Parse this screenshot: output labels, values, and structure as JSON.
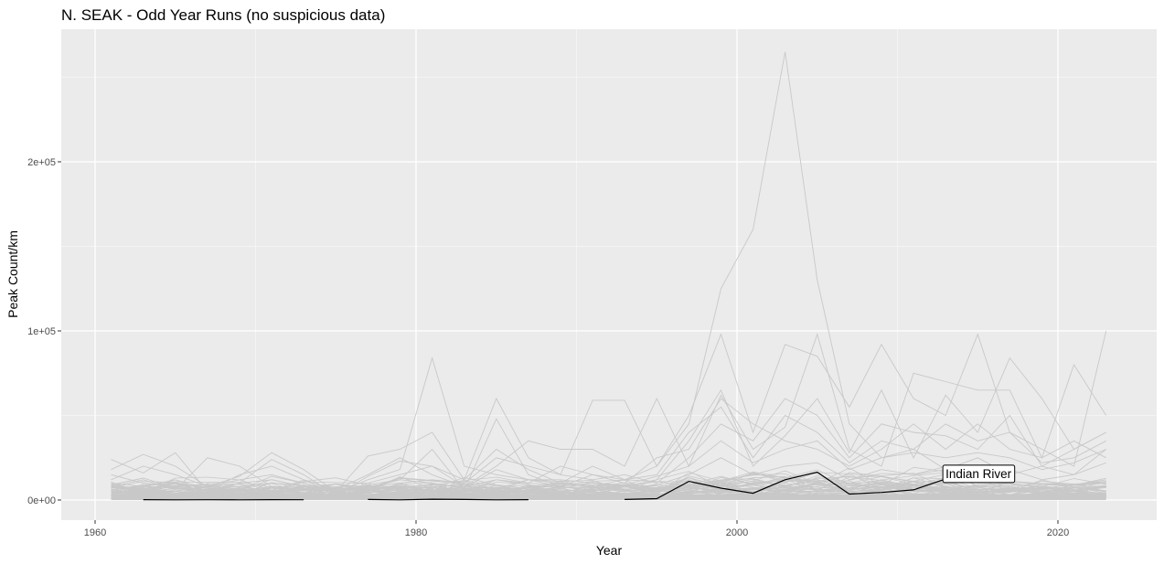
{
  "chart_data": {
    "type": "line",
    "title": "N. SEAK - Odd Year Runs (no suspicious data)",
    "xlabel": "Year",
    "ylabel": "Peak Count/km",
    "xlim": [
      1958.9,
      1965.9
    ],
    "ylim": [
      -13400,
      262000
    ],
    "x_ticks": [
      1960,
      1980,
      2000,
      2020
    ],
    "x_tick_labels": [
      "1960",
      "1980",
      "2000",
      "2020"
    ],
    "y_ticks": [
      0,
      100000,
      200000
    ],
    "y_tick_labels": [
      "0e+00",
      "1e+05",
      "2e+05"
    ],
    "grid": true,
    "legend": "none",
    "highlight": {
      "name": "Indian River",
      "color": "#000000",
      "segments": [
        {
          "x": [
            1963,
            1965,
            1967,
            1969,
            1971,
            1973
          ],
          "y": [
            200,
            100,
            150,
            100,
            200,
            150
          ]
        },
        {
          "x": [
            1977,
            1979,
            1981,
            1983,
            1985,
            1987
          ],
          "y": [
            300,
            100,
            500,
            300,
            100,
            200
          ]
        },
        {
          "x": [
            1993,
            1995,
            1997,
            1999,
            2001,
            2003,
            2005,
            2007,
            2009,
            2011,
            2013
          ],
          "y": [
            300,
            800,
            11000,
            7000,
            4000,
            12000,
            16500,
            3500,
            4500,
            6000,
            12500
          ]
        }
      ]
    },
    "annotation": {
      "text": "Indian River",
      "x": 2013,
      "y": 12500
    },
    "background_series_color": "#c8c8c8",
    "background_series": [
      {
        "x": [
          1961,
          1963,
          1965,
          1967,
          1969,
          1971,
          1973,
          1975,
          1977,
          1979,
          1981,
          1983,
          1985,
          1987,
          1989,
          1991,
          1993,
          1995,
          1997,
          1999,
          2001,
          2003,
          2005,
          2007,
          2009,
          2011,
          2013,
          2015,
          2017,
          2019,
          2021,
          2023
        ],
        "y": [
          12000,
          20000,
          15000,
          8000,
          12000,
          15000,
          10000,
          4000,
          12000,
          18000,
          84000,
          20000,
          15000,
          12000,
          8000,
          15000,
          12000,
          20000,
          45000,
          125000,
          160000,
          265000,
          130000,
          45000,
          25000,
          30000,
          18000,
          25000,
          15000,
          20000,
          15000,
          30000
        ]
      },
      {
        "x": [
          1961,
          1963,
          1965,
          1967,
          1969,
          1971,
          1973,
          1975,
          1977,
          1979,
          1981,
          1983,
          1985,
          1987,
          1989,
          1991,
          1993,
          1995,
          1997,
          1999,
          2001,
          2003,
          2005,
          2007,
          2009,
          2011,
          2013,
          2015,
          2017,
          2019,
          2021,
          2023
        ],
        "y": [
          18000,
          27000,
          20000,
          8000,
          14000,
          28000,
          18000,
          5000,
          26000,
          30000,
          40000,
          12000,
          60000,
          25000,
          15000,
          59000,
          59000,
          20000,
          50000,
          98000,
          40000,
          92000,
          85000,
          55000,
          92000,
          60000,
          50000,
          98000,
          40000,
          30000,
          20000,
          100000
        ]
      },
      {
        "x": [
          1961,
          1963,
          1965,
          1967,
          1969,
          1971,
          1973,
          1975,
          1977,
          1979,
          1981,
          1983,
          1985,
          1987,
          1989,
          1991,
          1993,
          1995,
          1997,
          1999,
          2001,
          2003,
          2005,
          2007,
          2009,
          2011,
          2013,
          2015,
          2017,
          2019,
          2021,
          2023
        ],
        "y": [
          24000,
          16000,
          28000,
          5000,
          10000,
          24000,
          15000,
          3000,
          14000,
          23000,
          20000,
          8000,
          20000,
          35000,
          30000,
          30000,
          20000,
          60000,
          20000,
          62000,
          30000,
          43000,
          98000,
          30000,
          20000,
          75000,
          70000,
          65000,
          65000,
          25000,
          80000,
          50000
        ]
      },
      {
        "x": [
          1961,
          1963,
          1965,
          1967,
          1969,
          1971,
          1973,
          1975,
          1977,
          1979,
          1981,
          1983,
          1985,
          1987,
          1989,
          1991,
          1993,
          1995,
          1997,
          1999,
          2001,
          2003,
          2005,
          2007,
          2009,
          2011,
          2013,
          2015,
          2017,
          2019,
          2021,
          2023
        ],
        "y": [
          8000,
          12000,
          6000,
          25000,
          20000,
          8000,
          6000,
          2000,
          9000,
          12000,
          30000,
          6000,
          48000,
          15000,
          8000,
          10000,
          8000,
          12000,
          35000,
          65000,
          20000,
          38000,
          60000,
          28000,
          65000,
          25000,
          62000,
          40000,
          84000,
          60000,
          30000,
          40000
        ]
      },
      {
        "x": [
          1961,
          1963,
          1965,
          1967,
          1969,
          1971,
          1973,
          1975,
          1977,
          1979,
          1981,
          1983,
          1985,
          1987,
          1989,
          1991,
          1993,
          1995,
          1997,
          1999,
          2001,
          2003,
          2005,
          2007,
          2009,
          2011,
          2013,
          2015,
          2017,
          2019,
          2021,
          2023
        ],
        "y": [
          10000,
          8000,
          12000,
          5000,
          15000,
          20000,
          12000,
          6000,
          15000,
          25000,
          15000,
          8000,
          12000,
          10000,
          20000,
          15000,
          10000,
          25000,
          30000,
          60000,
          45000,
          35000,
          30000,
          20000,
          30000,
          45000,
          30000,
          45000,
          30000,
          25000,
          35000,
          25000
        ]
      },
      {
        "x": [
          1961,
          1963,
          1965,
          1967,
          1969,
          1971,
          1973,
          1975,
          1977,
          1979,
          1981,
          1983,
          1985,
          1987,
          1989,
          1991,
          1993,
          1995,
          1997,
          1999,
          2001,
          2003,
          2005,
          2007,
          2009,
          2011,
          2013,
          2015,
          2017,
          2019,
          2021,
          2023
        ],
        "y": [
          15000,
          10000,
          8000,
          6000,
          8000,
          10000,
          9000,
          4000,
          8000,
          10000,
          12000,
          10000,
          25000,
          20000,
          15000,
          12000,
          15000,
          10000,
          25000,
          45000,
          35000,
          60000,
          50000,
          25000,
          45000,
          40000,
          38000,
          30000,
          50000,
          20000,
          30000,
          40000
        ]
      },
      {
        "x": [
          1961,
          1963,
          1965,
          1967,
          1969,
          1971,
          1973,
          1975,
          1977,
          1979,
          1981,
          1983,
          1985,
          1987,
          1989,
          1991,
          1993,
          1995,
          1997,
          1999,
          2001,
          2003,
          2005,
          2007,
          2009,
          2011,
          2013,
          2015,
          2017,
          2019,
          2021,
          2023
        ],
        "y": [
          6000,
          9000,
          10000,
          4000,
          10000,
          12000,
          8000,
          3000,
          10000,
          15000,
          20000,
          12000,
          30000,
          18000,
          10000,
          20000,
          12000,
          15000,
          40000,
          55000,
          25000,
          50000,
          40000,
          22000,
          35000,
          30000,
          45000,
          35000,
          40000,
          22000,
          25000,
          35000
        ]
      },
      {
        "x": [
          1961,
          1963,
          1965,
          1967,
          1969,
          1971,
          1973,
          1975,
          1977,
          1979,
          1981,
          1983,
          1985,
          1987,
          1989,
          1991,
          1993,
          1995,
          1997,
          1999,
          2001,
          2003,
          2005,
          2007,
          2009,
          2011,
          2013,
          2015,
          2017,
          2019,
          2021,
          2023
        ],
        "y": [
          9000,
          13000,
          7000,
          7000,
          6000,
          14000,
          10000,
          5000,
          7000,
          12000,
          10000,
          7000,
          18000,
          12000,
          12000,
          10000,
          9000,
          14000,
          20000,
          35000,
          22000,
          30000,
          35000,
          18000,
          25000,
          28000,
          25000,
          28000,
          25000,
          18000,
          22000,
          30000
        ]
      },
      {
        "x": [
          1961,
          1963,
          1965,
          1967,
          1969,
          1971,
          1973,
          1975,
          1977,
          1979,
          1981,
          1983,
          1985,
          1987,
          1989,
          1991,
          1993,
          1995,
          1997,
          1999,
          2001,
          2003,
          2005,
          2007,
          2009,
          2011,
          2013,
          2015,
          2017,
          2019,
          2021,
          2023
        ],
        "y": [
          5000,
          6000,
          5000,
          3000,
          5000,
          7000,
          6000,
          2000,
          6000,
          8000,
          9000,
          5000,
          12000,
          9000,
          7000,
          8000,
          6000,
          9000,
          15000,
          25000,
          15000,
          20000,
          22000,
          12000,
          18000,
          15000,
          18000,
          20000,
          18000,
          12000,
          15000,
          22000
        ]
      },
      {
        "x": [
          1961,
          1963,
          1965,
          1967,
          1969,
          1971,
          1973,
          1975,
          1977,
          1979,
          1981,
          1983,
          1985,
          1987,
          1989,
          1991,
          1993,
          1995,
          1997,
          1999,
          2001,
          2003,
          2005,
          2007,
          2009,
          2011,
          2013,
          2015,
          2017,
          2019,
          2021,
          2023
        ],
        "y": [
          3000,
          4000,
          3000,
          2000,
          3000,
          4000,
          3000,
          1000,
          3000,
          5000,
          5000,
          3000,
          7000,
          5000,
          4000,
          5000,
          4000,
          6000,
          9000,
          14000,
          9000,
          12000,
          12000,
          7000,
          10000,
          9000,
          10000,
          11000,
          10000,
          7000,
          9000,
          12000
        ]
      }
    ]
  }
}
